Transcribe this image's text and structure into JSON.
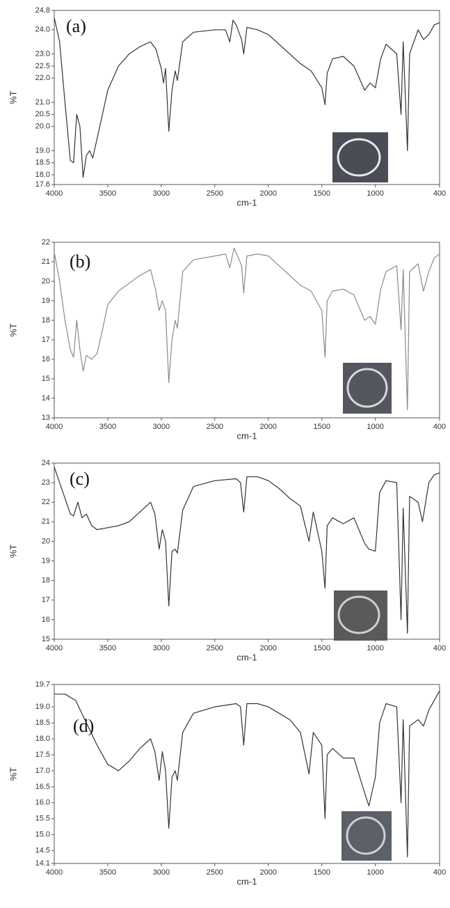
{
  "chart_data": [
    {
      "type": "line",
      "annotation": "(a)",
      "xlabel": "cm-1",
      "ylabel": "%T",
      "color": "#333333",
      "xlim": [
        4000,
        400
      ],
      "xticks": [
        4000,
        3500,
        3000,
        2500,
        2000,
        1500,
        1000,
        400
      ],
      "ylim": [
        17.6,
        24.8
      ],
      "yticks": [
        17.6,
        {
          "value": 18,
          "label": "18.0"
        },
        18.5,
        {
          "value": 19,
          "label": "19.0"
        },
        {
          "value": 20,
          "label": "20.0"
        },
        20.5,
        {
          "value": 21,
          "label": "21.0"
        },
        {
          "value": 22,
          "label": "22.0"
        },
        22.5,
        {
          "value": 23,
          "label": "23.0"
        },
        {
          "value": 24,
          "label": "24.0"
        },
        24.8
      ],
      "x": [
        4000,
        3950,
        3900,
        3850,
        3820,
        3790,
        3760,
        3730,
        3700,
        3670,
        3640,
        3600,
        3550,
        3500,
        3400,
        3300,
        3200,
        3100,
        3050,
        3000,
        2980,
        2960,
        2930,
        2900,
        2870,
        2850,
        2800,
        2700,
        2500,
        2400,
        2360,
        2330,
        2300,
        2250,
        2230,
        2200,
        2100,
        2000,
        1900,
        1800,
        1700,
        1600,
        1500,
        1470,
        1450,
        1400,
        1300,
        1200,
        1100,
        1050,
        1000,
        950,
        900,
        800,
        760,
        740,
        700,
        680,
        600,
        550,
        500,
        450,
        400
      ],
      "values": [
        24.5,
        23.5,
        21,
        18.6,
        18.5,
        20.5,
        20,
        17.9,
        18.8,
        19,
        18.7,
        19.5,
        20.5,
        21.5,
        22.5,
        23,
        23.3,
        23.5,
        23.2,
        22.4,
        21.8,
        22.4,
        19.8,
        21.5,
        22.3,
        21.9,
        23.5,
        23.9,
        24.0,
        24.0,
        23.5,
        24.4,
        24.2,
        23.6,
        23.0,
        24.1,
        24.0,
        23.8,
        23.4,
        23.0,
        22.6,
        22.3,
        21.6,
        20.9,
        22.2,
        22.8,
        22.9,
        22.5,
        21.5,
        21.8,
        21.6,
        22.8,
        23.4,
        23.0,
        20.5,
        23.5,
        19.0,
        23.0,
        24.0,
        23.6,
        23.8,
        24.2,
        24.3
      ]
    },
    {
      "type": "line",
      "annotation": "(b)",
      "xlabel": "cm-1",
      "ylabel": "%T",
      "color": "#8a8a8a",
      "xlim": [
        4000,
        400
      ],
      "xticks": [
        4000,
        3500,
        3000,
        2500,
        2000,
        1500,
        1000,
        400
      ],
      "ylim": [
        13,
        22
      ],
      "yticks": [
        13,
        14,
        15,
        16,
        17,
        18,
        19,
        20,
        21,
        22
      ],
      "x": [
        4000,
        3950,
        3900,
        3850,
        3820,
        3790,
        3760,
        3730,
        3700,
        3650,
        3600,
        3550,
        3500,
        3400,
        3300,
        3200,
        3100,
        3050,
        3020,
        2990,
        2960,
        2930,
        2900,
        2870,
        2850,
        2800,
        2700,
        2500,
        2400,
        2360,
        2320,
        2280,
        2250,
        2230,
        2200,
        2100,
        2000,
        1900,
        1800,
        1700,
        1600,
        1500,
        1470,
        1450,
        1400,
        1300,
        1200,
        1100,
        1050,
        1000,
        950,
        900,
        800,
        760,
        740,
        700,
        680,
        600,
        550,
        500,
        450,
        400
      ],
      "values": [
        21.5,
        20,
        18,
        16.5,
        16.1,
        18,
        16.5,
        15.4,
        16.2,
        16,
        16.3,
        17.5,
        18.8,
        19.5,
        19.9,
        20.3,
        20.6,
        19.5,
        18.5,
        19.0,
        18.5,
        14.8,
        17.0,
        18.0,
        17.6,
        20.5,
        21.1,
        21.3,
        21.4,
        20.7,
        21.7,
        21.2,
        20.8,
        19.4,
        21.3,
        21.4,
        21.3,
        20.8,
        20.3,
        19.8,
        19.5,
        18.5,
        16.1,
        19.0,
        19.5,
        19.6,
        19.3,
        18.0,
        18.2,
        17.8,
        19.6,
        20.5,
        20.8,
        17.5,
        20.6,
        13.4,
        20.5,
        20.9,
        19.5,
        20.5,
        21.2,
        21.4
      ]
    },
    {
      "type": "line",
      "annotation": "(c)",
      "xlabel": "cm-1",
      "ylabel": "%T",
      "color": "#333333",
      "xlim": [
        4000,
        400
      ],
      "xticks": [
        4000,
        3500,
        3000,
        2500,
        2000,
        1500,
        1000,
        400
      ],
      "ylim": [
        15,
        24
      ],
      "yticks": [
        15,
        16,
        17,
        18,
        19,
        20,
        21,
        22,
        23,
        24
      ],
      "x": [
        4000,
        3950,
        3900,
        3850,
        3820,
        3780,
        3740,
        3700,
        3650,
        3600,
        3500,
        3400,
        3300,
        3200,
        3100,
        3060,
        3020,
        2990,
        2960,
        2930,
        2900,
        2870,
        2850,
        2800,
        2700,
        2500,
        2300,
        2260,
        2230,
        2200,
        2100,
        2000,
        1900,
        1800,
        1700,
        1620,
        1580,
        1500,
        1470,
        1450,
        1400,
        1300,
        1200,
        1100,
        1060,
        1000,
        960,
        900,
        800,
        760,
        740,
        700,
        680,
        600,
        560,
        500,
        450,
        400
      ],
      "values": [
        23.8,
        23.0,
        22.2,
        21.4,
        21.3,
        22.0,
        21.2,
        21.4,
        20.8,
        20.6,
        20.7,
        20.8,
        21.0,
        21.5,
        22.0,
        21.4,
        19.6,
        20.6,
        20.0,
        16.7,
        19.5,
        19.6,
        19.4,
        21.6,
        22.8,
        23.1,
        23.2,
        23.0,
        21.5,
        23.3,
        23.3,
        23.1,
        22.7,
        22.2,
        21.8,
        20.0,
        21.5,
        19.5,
        17.6,
        20.8,
        21.2,
        20.9,
        21.2,
        19.9,
        19.6,
        19.5,
        22.5,
        23.1,
        23.0,
        16.0,
        21.7,
        15.3,
        22.3,
        22.0,
        21.0,
        23.0,
        23.4,
        23.5
      ]
    },
    {
      "type": "line",
      "annotation": "(d)",
      "xlabel": "cm-1",
      "ylabel": "%T",
      "color": "#333333",
      "xlim": [
        4000,
        400
      ],
      "xticks": [
        4000,
        3500,
        3000,
        2500,
        2000,
        1500,
        1000,
        400
      ],
      "ylim": [
        14.1,
        19.7
      ],
      "yticks": [
        14.1,
        14.5,
        {
          "value": 15,
          "label": "15.0"
        },
        15.5,
        {
          "value": 16,
          "label": "16.0"
        },
        16.5,
        {
          "value": 17,
          "label": "17.0"
        },
        17.5,
        {
          "value": 18,
          "label": "18.0"
        },
        18.5,
        {
          "value": 19,
          "label": "19.0"
        },
        19.7
      ],
      "x": [
        4000,
        3900,
        3800,
        3700,
        3600,
        3500,
        3400,
        3300,
        3200,
        3100,
        3060,
        3020,
        2990,
        2960,
        2930,
        2900,
        2870,
        2850,
        2800,
        2700,
        2500,
        2300,
        2260,
        2230,
        2200,
        2100,
        2000,
        1900,
        1800,
        1700,
        1620,
        1580,
        1500,
        1470,
        1450,
        1400,
        1300,
        1200,
        1100,
        1060,
        1000,
        960,
        900,
        800,
        760,
        740,
        700,
        680,
        600,
        550,
        500,
        450,
        400
      ],
      "values": [
        19.4,
        19.4,
        19.2,
        18.5,
        17.8,
        17.2,
        17.0,
        17.3,
        17.7,
        18.0,
        17.6,
        16.7,
        17.6,
        17.0,
        15.2,
        16.8,
        17.0,
        16.7,
        18.2,
        18.8,
        19.0,
        19.1,
        19.0,
        17.8,
        19.1,
        19.1,
        19.0,
        18.8,
        18.6,
        18.2,
        16.9,
        18.2,
        17.8,
        15.5,
        17.5,
        17.7,
        17.4,
        17.4,
        16.3,
        15.9,
        16.8,
        18.5,
        19.1,
        19.0,
        16.0,
        18.6,
        14.3,
        18.4,
        18.6,
        18.4,
        18.9,
        19.2,
        19.5
      ]
    }
  ]
}
